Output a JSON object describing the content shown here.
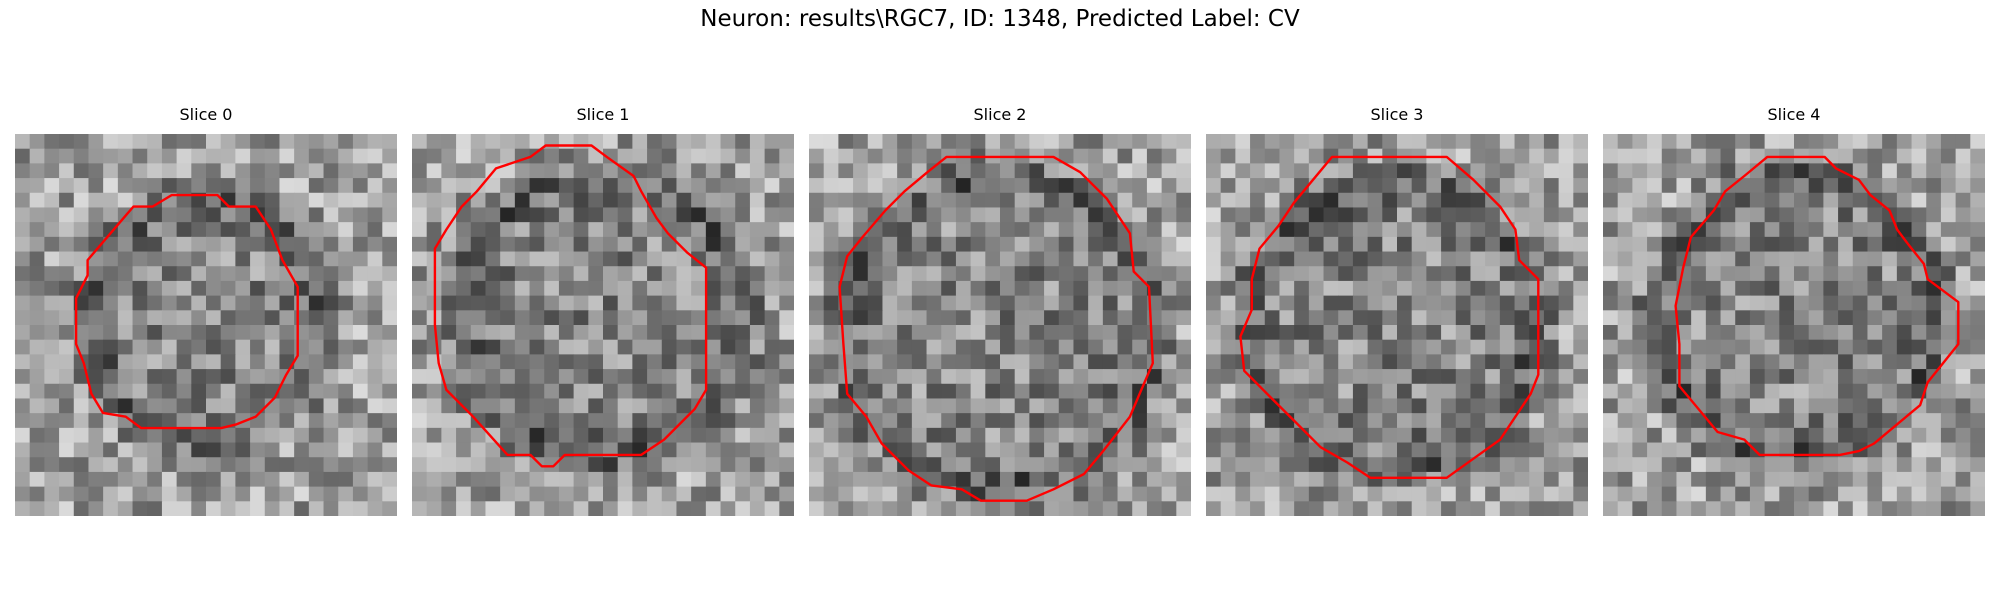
{
  "figure": {
    "title": "Neuron: results\\RGC7, ID: 1348, Predicted Label: CV"
  },
  "panels": [
    {
      "title": "Slice 0"
    },
    {
      "title": "Slice 1"
    },
    {
      "title": "Slice 2"
    },
    {
      "title": "Slice 3"
    },
    {
      "title": "Slice 4"
    }
  ],
  "colors": {
    "contour": "#ff0000",
    "background": "#ffffff"
  }
}
